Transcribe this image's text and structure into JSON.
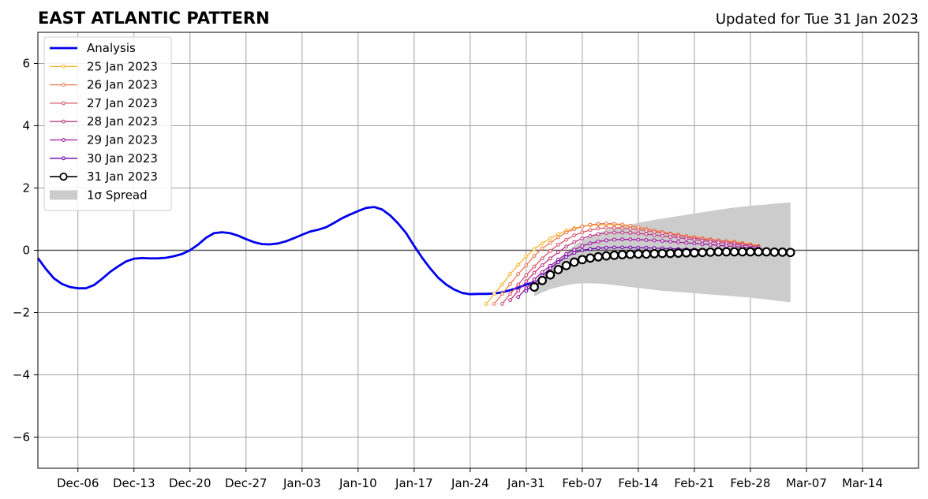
{
  "chart_data": {
    "type": "line",
    "title": "EAST ATLANTIC PATTERN",
    "subtitle": "Updated for Tue 31 Jan 2023",
    "xlabel": "",
    "ylabel": "",
    "xlim": [
      "2022-12-01",
      "2023-03-21"
    ],
    "ylim": [
      -7,
      7
    ],
    "grid": true,
    "legend_position": "top-left",
    "x_ticks": [
      {
        "date": "2022-12-06",
        "label": "Dec-06"
      },
      {
        "date": "2022-12-13",
        "label": "Dec-13"
      },
      {
        "date": "2022-12-20",
        "label": "Dec-20"
      },
      {
        "date": "2022-12-27",
        "label": "Dec-27"
      },
      {
        "date": "2023-01-03",
        "label": "Jan-03"
      },
      {
        "date": "2023-01-10",
        "label": "Jan-10"
      },
      {
        "date": "2023-01-17",
        "label": "Jan-17"
      },
      {
        "date": "2023-01-24",
        "label": "Jan-24"
      },
      {
        "date": "2023-01-31",
        "label": "Jan-31"
      },
      {
        "date": "2023-02-07",
        "label": "Feb-07"
      },
      {
        "date": "2023-02-14",
        "label": "Feb-14"
      },
      {
        "date": "2023-02-21",
        "label": "Feb-21"
      },
      {
        "date": "2023-02-28",
        "label": "Feb-28"
      },
      {
        "date": "2023-03-07",
        "label": "Mar-07"
      },
      {
        "date": "2023-03-14",
        "label": "Mar-14"
      }
    ],
    "y_ticks": [
      {
        "value": -6,
        "label": "−6"
      },
      {
        "value": -4,
        "label": "−4"
      },
      {
        "value": -2,
        "label": "−2"
      },
      {
        "value": 0,
        "label": "0"
      },
      {
        "value": 2,
        "label": "2"
      },
      {
        "value": 4,
        "label": "4"
      },
      {
        "value": 6,
        "label": "6"
      }
    ],
    "analysis": {
      "name": "Analysis",
      "color": "#0000ee",
      "points": [
        [
          "2022-12-01",
          -0.25
        ],
        [
          "2022-12-02",
          -0.6
        ],
        [
          "2022-12-03",
          -0.9
        ],
        [
          "2022-12-04",
          -1.08
        ],
        [
          "2022-12-05",
          -1.18
        ],
        [
          "2022-12-06",
          -1.22
        ],
        [
          "2022-12-07",
          -1.22
        ],
        [
          "2022-12-08",
          -1.12
        ],
        [
          "2022-12-09",
          -0.92
        ],
        [
          "2022-12-10",
          -0.7
        ],
        [
          "2022-12-11",
          -0.52
        ],
        [
          "2022-12-12",
          -0.36
        ],
        [
          "2022-12-13",
          -0.27
        ],
        [
          "2022-12-14",
          -0.25
        ],
        [
          "2022-12-15",
          -0.26
        ],
        [
          "2022-12-16",
          -0.26
        ],
        [
          "2022-12-17",
          -0.24
        ],
        [
          "2022-12-18",
          -0.19
        ],
        [
          "2022-12-19",
          -0.12
        ],
        [
          "2022-12-20",
          0.0
        ],
        [
          "2022-12-21",
          0.18
        ],
        [
          "2022-12-22",
          0.4
        ],
        [
          "2022-12-23",
          0.55
        ],
        [
          "2022-12-24",
          0.58
        ],
        [
          "2022-12-25",
          0.55
        ],
        [
          "2022-12-26",
          0.47
        ],
        [
          "2022-12-27",
          0.36
        ],
        [
          "2022-12-28",
          0.26
        ],
        [
          "2022-12-29",
          0.2
        ],
        [
          "2022-12-30",
          0.19
        ],
        [
          "2022-12-31",
          0.22
        ],
        [
          "2023-01-01",
          0.29
        ],
        [
          "2023-01-02",
          0.39
        ],
        [
          "2023-01-03",
          0.5
        ],
        [
          "2023-01-04",
          0.6
        ],
        [
          "2023-01-05",
          0.66
        ],
        [
          "2023-01-06",
          0.74
        ],
        [
          "2023-01-07",
          0.88
        ],
        [
          "2023-01-08",
          1.03
        ],
        [
          "2023-01-09",
          1.15
        ],
        [
          "2023-01-10",
          1.26
        ],
        [
          "2023-01-11",
          1.36
        ],
        [
          "2023-01-12",
          1.39
        ],
        [
          "2023-01-13",
          1.31
        ],
        [
          "2023-01-14",
          1.12
        ],
        [
          "2023-01-15",
          0.86
        ],
        [
          "2023-01-16",
          0.55
        ],
        [
          "2023-01-17",
          0.14
        ],
        [
          "2023-01-18",
          -0.24
        ],
        [
          "2023-01-19",
          -0.58
        ],
        [
          "2023-01-20",
          -0.88
        ],
        [
          "2023-01-21",
          -1.1
        ],
        [
          "2023-01-22",
          -1.26
        ],
        [
          "2023-01-23",
          -1.37
        ],
        [
          "2023-01-24",
          -1.41
        ],
        [
          "2023-01-25",
          -1.4
        ],
        [
          "2023-01-26",
          -1.4
        ],
        [
          "2023-01-27",
          -1.39
        ],
        [
          "2023-01-28",
          -1.35
        ],
        [
          "2023-01-29",
          -1.28
        ],
        [
          "2023-01-30",
          -1.2
        ],
        [
          "2023-01-31",
          -1.1
        ],
        [
          "2023-02-01",
          -1.02
        ]
      ]
    },
    "forecasts": [
      {
        "name": "25 Jan 2023",
        "color": "#f5b731",
        "start": "2023-01-26",
        "values": [
          -1.72,
          -1.4,
          -1.1,
          -0.76,
          -0.46,
          -0.2,
          0.04,
          0.22,
          0.38,
          0.52,
          0.63,
          0.71,
          0.77,
          0.8,
          0.82,
          0.82,
          0.82,
          0.8,
          0.77,
          0.73,
          0.68,
          0.63,
          0.58,
          0.54,
          0.5,
          0.46,
          0.43,
          0.39,
          0.36,
          0.32,
          0.3,
          0.28,
          0.24,
          0.2,
          0.15
        ]
      },
      {
        "name": "26 Jan 2023",
        "color": "#ed7953",
        "start": "2023-01-27",
        "values": [
          -1.72,
          -1.4,
          -1.08,
          -0.76,
          -0.48,
          -0.18,
          0.06,
          0.24,
          0.42,
          0.57,
          0.68,
          0.76,
          0.82,
          0.85,
          0.86,
          0.85,
          0.83,
          0.79,
          0.74,
          0.69,
          0.64,
          0.59,
          0.54,
          0.5,
          0.45,
          0.42,
          0.38,
          0.35,
          0.32,
          0.29,
          0.27,
          0.23,
          0.18,
          0.14
        ]
      },
      {
        "name": "27 Jan 2023",
        "color": "#d8576b",
        "start": "2023-01-28",
        "values": [
          -1.72,
          -1.4,
          -1.1,
          -0.8,
          -0.52,
          -0.26,
          -0.02,
          0.18,
          0.34,
          0.48,
          0.58,
          0.65,
          0.7,
          0.72,
          0.72,
          0.71,
          0.69,
          0.66,
          0.63,
          0.59,
          0.55,
          0.51,
          0.47,
          0.43,
          0.39,
          0.36,
          0.33,
          0.3,
          0.27,
          0.24,
          0.2,
          0.16,
          0.12
        ]
      },
      {
        "name": "28 Jan 2023",
        "color": "#bd3786",
        "start": "2023-01-29",
        "values": [
          -1.6,
          -1.3,
          -1.0,
          -0.72,
          -0.48,
          -0.26,
          -0.06,
          0.12,
          0.26,
          0.38,
          0.46,
          0.52,
          0.55,
          0.57,
          0.57,
          0.56,
          0.54,
          0.52,
          0.49,
          0.46,
          0.43,
          0.4,
          0.37,
          0.34,
          0.31,
          0.28,
          0.25,
          0.22,
          0.19,
          0.17,
          0.14,
          0.11
        ]
      },
      {
        "name": "29 Jan 2023",
        "color": "#9c179e",
        "start": "2023-01-30",
        "values": [
          -1.5,
          -1.22,
          -0.94,
          -0.7,
          -0.5,
          -0.3,
          -0.12,
          0.02,
          0.14,
          0.22,
          0.28,
          0.32,
          0.34,
          0.35,
          0.35,
          0.34,
          0.33,
          0.32,
          0.3,
          0.28,
          0.26,
          0.24,
          0.22,
          0.2,
          0.18,
          0.16,
          0.14,
          0.12,
          0.1,
          0.08,
          0.06
        ]
      },
      {
        "name": "30 Jan 2023",
        "color": "#6a00a8",
        "start": "2023-01-31",
        "values": [
          -1.3,
          -1.08,
          -0.82,
          -0.58,
          -0.38,
          -0.22,
          -0.08,
          0.0,
          0.04,
          0.07,
          0.08,
          0.09,
          0.09,
          0.09,
          0.08,
          0.08,
          0.07,
          0.06,
          0.05,
          0.04,
          0.03,
          0.02,
          0.01,
          0.01,
          0.0,
          0.0,
          -0.01,
          -0.02,
          -0.03,
          -0.04
        ]
      },
      {
        "name": "31 Jan 2023",
        "color": "#000000",
        "marker_face": "#ffffff",
        "start": "2023-02-01",
        "values": [
          -1.18,
          -0.97,
          -0.79,
          -0.62,
          -0.49,
          -0.38,
          -0.3,
          -0.25,
          -0.21,
          -0.18,
          -0.16,
          -0.14,
          -0.13,
          -0.12,
          -0.12,
          -0.11,
          -0.1,
          -0.1,
          -0.09,
          -0.08,
          -0.08,
          -0.07,
          -0.06,
          -0.05,
          -0.05,
          -0.05,
          -0.05,
          -0.05,
          -0.05,
          -0.05,
          -0.06,
          -0.06,
          -0.07
        ]
      }
    ],
    "spread": {
      "name": "1σ Spread",
      "color": "#cccccc",
      "start": "2023-02-01",
      "upper": [
        -1.02,
        -0.8,
        -0.55,
        -0.3,
        -0.05,
        0.15,
        0.32,
        0.45,
        0.56,
        0.65,
        0.72,
        0.78,
        0.83,
        0.88,
        0.93,
        0.98,
        1.02,
        1.06,
        1.1,
        1.14,
        1.18,
        1.22,
        1.26,
        1.3,
        1.34,
        1.37,
        1.4,
        1.43,
        1.45,
        1.47,
        1.5,
        1.52,
        1.54
      ],
      "lower": [
        -1.48,
        -1.35,
        -1.25,
        -1.18,
        -1.12,
        -1.08,
        -1.06,
        -1.06,
        -1.07,
        -1.09,
        -1.12,
        -1.15,
        -1.18,
        -1.21,
        -1.24,
        -1.27,
        -1.3,
        -1.32,
        -1.34,
        -1.36,
        -1.38,
        -1.4,
        -1.42,
        -1.44,
        -1.46,
        -1.48,
        -1.5,
        -1.52,
        -1.55,
        -1.58,
        -1.61,
        -1.64,
        -1.67
      ]
    },
    "legend": [
      {
        "label": "Analysis",
        "key": "analysis"
      },
      {
        "label": "25 Jan 2023",
        "key": "f0"
      },
      {
        "label": "26 Jan 2023",
        "key": "f1"
      },
      {
        "label": "27 Jan 2023",
        "key": "f2"
      },
      {
        "label": "28 Jan 2023",
        "key": "f3"
      },
      {
        "label": "29 Jan 2023",
        "key": "f4"
      },
      {
        "label": "30 Jan 2023",
        "key": "f5"
      },
      {
        "label": "31 Jan 2023",
        "key": "f6"
      },
      {
        "label": "1σ Spread",
        "key": "spread"
      }
    ]
  }
}
